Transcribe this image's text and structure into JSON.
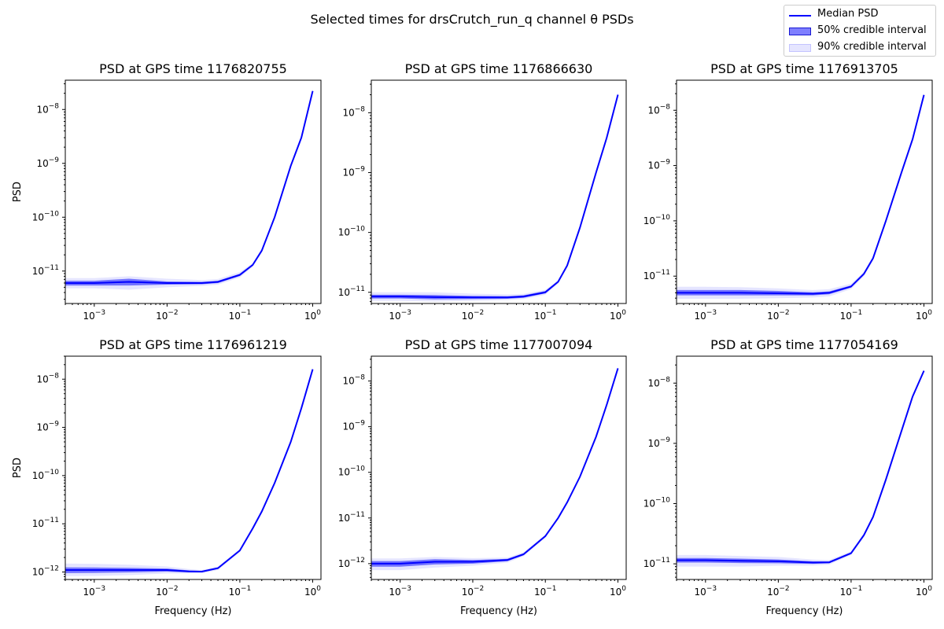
{
  "figure": {
    "title": "Selected times for drsCrutch_run_q channel θ PSDs",
    "xlabel": "Frequency (Hz)",
    "ylabel": "PSD",
    "colors": {
      "median": "#0000ff",
      "band50": "#0000ff",
      "band90": "#0000ff"
    }
  },
  "legend": {
    "placement": "top-right",
    "items": [
      {
        "label": "Median PSD",
        "kind": "line"
      },
      {
        "label": "50% credible interval",
        "kind": "band50"
      },
      {
        "label": "90% credible interval",
        "kind": "band90"
      }
    ]
  },
  "chart_data": [
    {
      "type": "line",
      "title": "PSD at GPS time 1176820755",
      "xscale": "log",
      "yscale": "log",
      "xlim": [
        0.0004,
        1.3
      ],
      "ylim": [
        2.5e-12,
        3.5e-08
      ],
      "x": [
        0.0004,
        0.001,
        0.003,
        0.01,
        0.03,
        0.05,
        0.1,
        0.15,
        0.2,
        0.3,
        0.5,
        0.7,
        1.0
      ],
      "median": [
        6e-12,
        6e-12,
        6.3e-12,
        6e-12,
        6e-12,
        6.3e-12,
        8.5e-12,
        1.3e-11,
        2.4e-11,
        1e-10,
        9e-10,
        3e-09,
        2.2e-08
      ],
      "p50_lo": [
        5.4e-12,
        5.4e-12,
        5.4e-12,
        5.6e-12,
        5.7e-12,
        6e-12,
        8.1e-12,
        1.25e-11,
        2.3e-11,
        9.6e-11,
        8.7e-10,
        2.9e-09,
        2.1e-08
      ],
      "p50_hi": [
        6.6e-12,
        6.6e-12,
        7.2e-12,
        6.4e-12,
        6.3e-12,
        6.6e-12,
        8.9e-12,
        1.35e-11,
        2.5e-11,
        1.04e-10,
        9.3e-10,
        3.1e-09,
        2.3e-08
      ],
      "p90_lo": [
        4.8e-12,
        4.8e-12,
        4.5e-12,
        5e-12,
        5.3e-12,
        5.6e-12,
        7.6e-12,
        1.2e-11,
        2.2e-11,
        9.2e-11,
        8.4e-10,
        2.8e-09,
        2e-08
      ],
      "p90_hi": [
        7.4e-12,
        7.4e-12,
        8e-12,
        7.2e-12,
        6.8e-12,
        7.1e-12,
        9.6e-12,
        1.4e-11,
        2.6e-11,
        1.08e-10,
        9.6e-10,
        3.2e-09,
        2.4e-08
      ]
    },
    {
      "type": "line",
      "title": "PSD at GPS time 1176866630",
      "xscale": "log",
      "yscale": "log",
      "xlim": [
        0.0004,
        1.3
      ],
      "ylim": [
        6.5e-12,
        3.5e-08
      ],
      "x": [
        0.0004,
        0.001,
        0.003,
        0.01,
        0.03,
        0.05,
        0.1,
        0.15,
        0.2,
        0.3,
        0.5,
        0.7,
        1.0
      ],
      "median": [
        8.5e-12,
        8.5e-12,
        8.3e-12,
        8.2e-12,
        8.2e-12,
        8.5e-12,
        1e-11,
        1.5e-11,
        2.8e-11,
        1.2e-10,
        1e-09,
        3.8e-09,
        2e-08
      ],
      "p50_lo": [
        7.9e-12,
        7.9e-12,
        7.6e-12,
        7.7e-12,
        7.8e-12,
        8.1e-12,
        9.6e-12,
        1.45e-11,
        2.7e-11,
        1.15e-10,
        9.6e-10,
        3.7e-09,
        1.9e-08
      ],
      "p50_hi": [
        9.1e-12,
        9.1e-12,
        9e-12,
        8.7e-12,
        8.6e-12,
        8.9e-12,
        1.05e-11,
        1.55e-11,
        2.9e-11,
        1.25e-10,
        1.04e-09,
        3.9e-09,
        2.1e-08
      ],
      "p90_lo": [
        7.2e-12,
        7.2e-12,
        7e-12,
        7.2e-12,
        7.4e-12,
        7.7e-12,
        9.1e-12,
        1.4e-11,
        2.6e-11,
        1.1e-10,
        9.2e-10,
        3.6e-09,
        1.85e-08
      ],
      "p90_hi": [
        1e-11,
        1e-11,
        1e-11,
        9.5e-12,
        9.2e-12,
        9.4e-12,
        1.1e-11,
        1.6e-11,
        3e-11,
        1.3e-10,
        1.08e-09,
        4e-09,
        2.15e-08
      ]
    },
    {
      "type": "line",
      "title": "PSD at GPS time 1176913705",
      "xscale": "log",
      "yscale": "log",
      "xlim": [
        0.0004,
        1.3
      ],
      "ylim": [
        3.2e-12,
        3.5e-08
      ],
      "x": [
        0.0004,
        0.001,
        0.003,
        0.01,
        0.03,
        0.05,
        0.1,
        0.15,
        0.2,
        0.3,
        0.5,
        0.7,
        1.0
      ],
      "median": [
        5e-12,
        5e-12,
        5e-12,
        4.9e-12,
        4.8e-12,
        5e-12,
        6.5e-12,
        1.1e-11,
        2.1e-11,
        1e-10,
        8e-10,
        3e-09,
        1.9e-08
      ],
      "p50_lo": [
        4.5e-12,
        4.5e-12,
        4.5e-12,
        4.5e-12,
        4.5e-12,
        4.7e-12,
        6.2e-12,
        1.05e-11,
        2e-11,
        9.6e-11,
        7.7e-10,
        2.9e-09,
        1.85e-08
      ],
      "p50_hi": [
        5.6e-12,
        5.6e-12,
        5.6e-12,
        5.4e-12,
        5.1e-12,
        5.3e-12,
        6.8e-12,
        1.15e-11,
        2.2e-11,
        1.04e-10,
        8.3e-10,
        3.1e-09,
        1.95e-08
      ],
      "p90_lo": [
        3.9e-12,
        3.9e-12,
        3.9e-12,
        4e-12,
        4.1e-12,
        4.3e-12,
        5.8e-12,
        1e-11,
        1.9e-11,
        9.2e-11,
        7.4e-10,
        2.8e-09,
        1.8e-08
      ],
      "p90_hi": [
        6.4e-12,
        6.4e-12,
        6.3e-12,
        6e-12,
        5.6e-12,
        5.8e-12,
        7.3e-12,
        1.2e-11,
        2.3e-11,
        1.08e-10,
        8.6e-10,
        3.2e-09,
        2e-08
      ]
    },
    {
      "type": "line",
      "title": "PSD at GPS time 1176961219",
      "xscale": "log",
      "yscale": "log",
      "xlim": [
        0.0004,
        1.3
      ],
      "ylim": [
        7e-13,
        3e-08
      ],
      "x": [
        0.0004,
        0.001,
        0.003,
        0.01,
        0.02,
        0.03,
        0.05,
        0.1,
        0.15,
        0.2,
        0.3,
        0.5,
        0.7,
        1.0
      ],
      "median": [
        1.1e-12,
        1.1e-12,
        1.1e-12,
        1.1e-12,
        1.03e-12,
        1.02e-12,
        1.2e-12,
        2.8e-12,
        8e-12,
        1.8e-11,
        7e-11,
        5e-10,
        2.5e-09,
        1.6e-08
      ],
      "p50_lo": [
        9.5e-13,
        9.6e-13,
        9.8e-13,
        1.02e-12,
        9.8e-13,
        9.8e-13,
        1.15e-12,
        2.7e-12,
        7.7e-12,
        1.75e-11,
        6.8e-11,
        4.9e-10,
        2.45e-09,
        1.55e-08
      ],
      "p50_hi": [
        1.25e-12,
        1.24e-12,
        1.22e-12,
        1.18e-12,
        1.08e-12,
        1.06e-12,
        1.25e-12,
        2.9e-12,
        8.3e-12,
        1.85e-11,
        7.2e-11,
        5.1e-10,
        2.55e-09,
        1.65e-08
      ],
      "p90_lo": [
        8.2e-13,
        8.3e-13,
        8.6e-13,
        9.3e-13,
        9.3e-13,
        9.4e-13,
        1.1e-12,
        2.6e-12,
        7.4e-12,
        1.7e-11,
        6.6e-11,
        4.8e-10,
        2.4e-09,
        1.5e-08
      ],
      "p90_hi": [
        1.5e-12,
        1.48e-12,
        1.42e-12,
        1.3e-12,
        1.15e-12,
        1.1e-12,
        1.3e-12,
        3e-12,
        8.6e-12,
        1.9e-11,
        7.4e-11,
        5.2e-10,
        2.6e-09,
        1.7e-08
      ]
    },
    {
      "type": "line",
      "title": "PSD at GPS time 1177007094",
      "xscale": "log",
      "yscale": "log",
      "xlim": [
        0.0004,
        1.3
      ],
      "ylim": [
        4.5e-13,
        3.5e-08
      ],
      "x": [
        0.0004,
        0.001,
        0.003,
        0.01,
        0.03,
        0.05,
        0.1,
        0.15,
        0.2,
        0.3,
        0.5,
        0.7,
        1.0
      ],
      "median": [
        1e-12,
        1e-12,
        1.1e-12,
        1.1e-12,
        1.2e-12,
        1.6e-12,
        4e-12,
        1e-11,
        2.2e-11,
        8e-11,
        6e-10,
        3e-09,
        1.9e-08
      ],
      "p50_lo": [
        8.6e-13,
        8.6e-13,
        9.6e-13,
        1e-12,
        1.13e-12,
        1.52e-12,
        3.85e-12,
        9.7e-12,
        2.15e-11,
        7.8e-11,
        5.9e-10,
        2.95e-09,
        1.85e-08
      ],
      "p50_hi": [
        1.14e-12,
        1.14e-12,
        1.25e-12,
        1.2e-12,
        1.27e-12,
        1.68e-12,
        4.15e-12,
        1.03e-11,
        2.25e-11,
        8.2e-11,
        6.1e-10,
        3.05e-09,
        1.95e-08
      ],
      "p90_lo": [
        7.2e-13,
        7.2e-13,
        8.2e-13,
        9e-13,
        1.05e-12,
        1.45e-12,
        3.7e-12,
        9.4e-12,
        2.1e-11,
        7.6e-11,
        5.8e-10,
        2.9e-09,
        1.8e-08
      ],
      "p90_hi": [
        1.3e-12,
        1.3e-12,
        1.4e-12,
        1.32e-12,
        1.35e-12,
        1.78e-12,
        4.3e-12,
        1.06e-11,
        2.3e-11,
        8.4e-11,
        6.2e-10,
        3.1e-09,
        2e-08
      ]
    },
    {
      "type": "line",
      "title": "PSD at GPS time 1177054169",
      "xscale": "log",
      "yscale": "log",
      "xlim": [
        0.0004,
        1.3
      ],
      "ylim": [
        5.5e-12,
        2.8e-08
      ],
      "x": [
        0.0004,
        0.001,
        0.003,
        0.01,
        0.03,
        0.05,
        0.1,
        0.15,
        0.2,
        0.3,
        0.5,
        0.7,
        1.0
      ],
      "median": [
        1.15e-11,
        1.15e-11,
        1.12e-11,
        1.1e-11,
        1.05e-11,
        1.06e-11,
        1.5e-11,
        3e-11,
        6e-11,
        2.5e-10,
        1.7e-09,
        6e-09,
        1.6e-08
      ],
      "p50_lo": [
        1.05e-11,
        1.05e-11,
        1.03e-11,
        1.02e-11,
        1e-11,
        1.02e-11,
        1.45e-11,
        2.9e-11,
        5.8e-11,
        2.45e-10,
        1.65e-09,
        5.9e-09,
        1.55e-08
      ],
      "p50_hi": [
        1.25e-11,
        1.25e-11,
        1.22e-11,
        1.18e-11,
        1.1e-11,
        1.1e-11,
        1.55e-11,
        3.1e-11,
        6.2e-11,
        2.55e-10,
        1.75e-09,
        6.1e-09,
        1.65e-08
      ],
      "p90_lo": [
        9e-12,
        9e-12,
        9e-12,
        9.3e-12,
        9.4e-12,
        9.7e-12,
        1.4e-11,
        2.8e-11,
        5.6e-11,
        2.4e-10,
        1.6e-09,
        5.8e-09,
        1.5e-08
      ],
      "p90_hi": [
        1.4e-11,
        1.4e-11,
        1.35e-11,
        1.3e-11,
        1.18e-11,
        1.16e-11,
        1.62e-11,
        3.2e-11,
        6.4e-11,
        2.6e-10,
        1.8e-09,
        6.2e-09,
        1.7e-08
      ]
    }
  ]
}
